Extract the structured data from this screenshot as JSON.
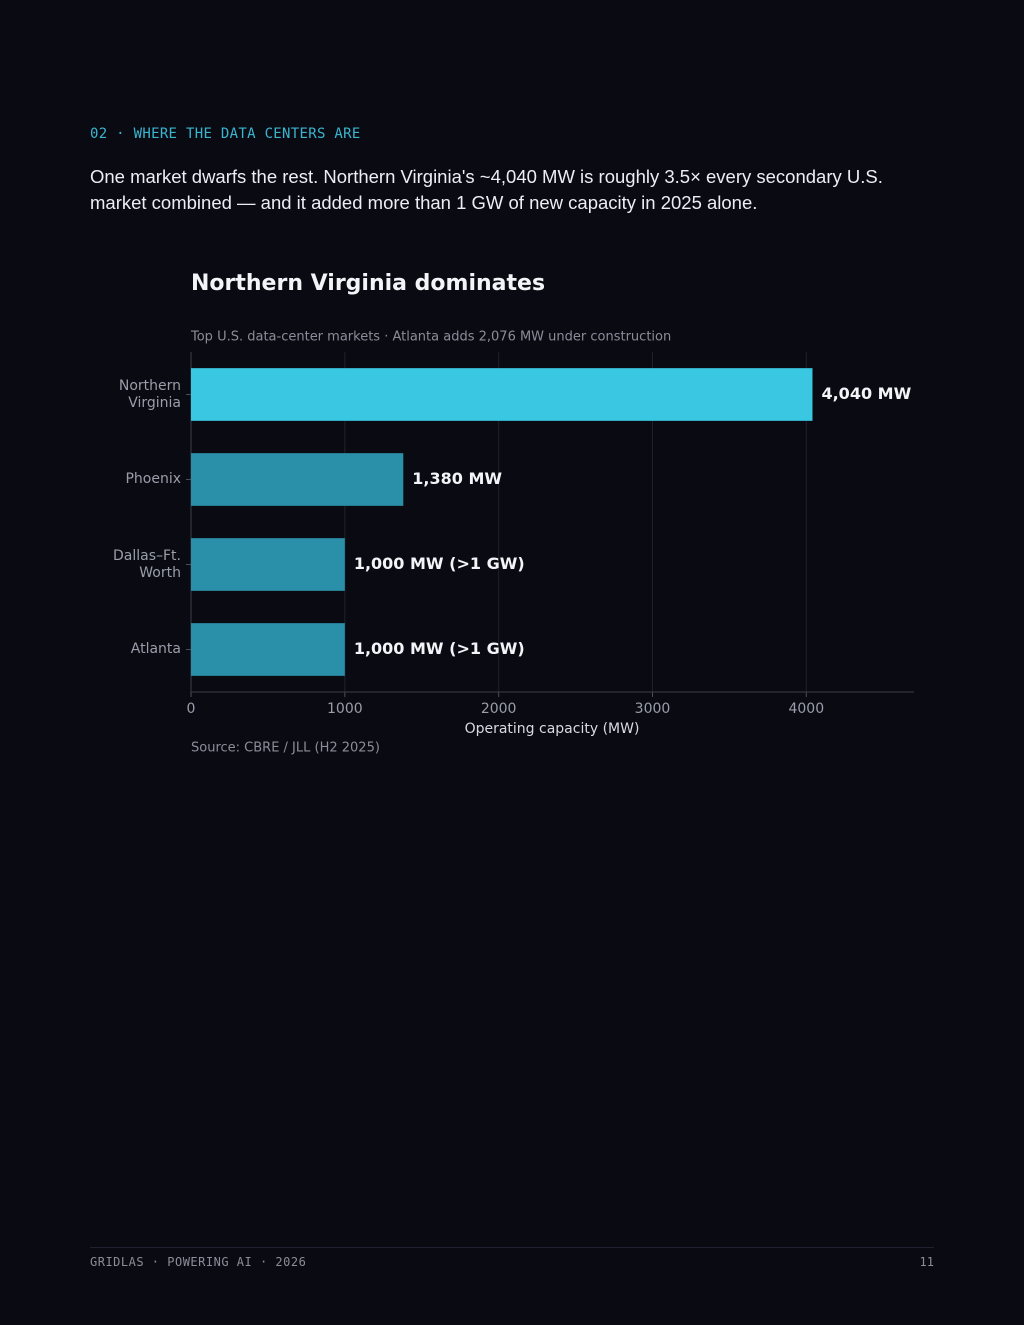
{
  "section_label": "02 · WHERE THE DATA CENTERS ARE",
  "lede": "One market dwarfs the rest. Northern Virginia's ~4,040 MW is roughly 3.5× every secondary U.S. market combined — and it added more than 1 GW of new capacity in 2025 alone.",
  "chart_data": {
    "type": "barh",
    "title": "Northern Virginia dominates",
    "subtitle": "Top U.S. data-center markets · Atlanta adds 2,076 MW under construction",
    "categories": [
      "Northern Virginia",
      "Phoenix",
      "Dallas–Ft. Worth",
      "Atlanta"
    ],
    "values": [
      4040,
      1380,
      1000,
      1000
    ],
    "value_labels": [
      "4,040 MW",
      "1,380 MW",
      "1,000 MW (>1 GW)",
      "1,000 MW (>1 GW)"
    ],
    "colors": [
      "#3ac7e2",
      "#2a8fa8",
      "#2a8fa8",
      "#2a8fa8"
    ],
    "xlim": [
      0,
      4700
    ],
    "xticks": [
      0,
      1000,
      2000,
      3000,
      4000
    ],
    "xlabel": "Operating capacity (MW)",
    "grid": true,
    "source": "Source: CBRE / JLL (H2 2025)"
  },
  "footer": {
    "left": "GRIDLAS · POWERING AI · 2026",
    "page": "11"
  }
}
